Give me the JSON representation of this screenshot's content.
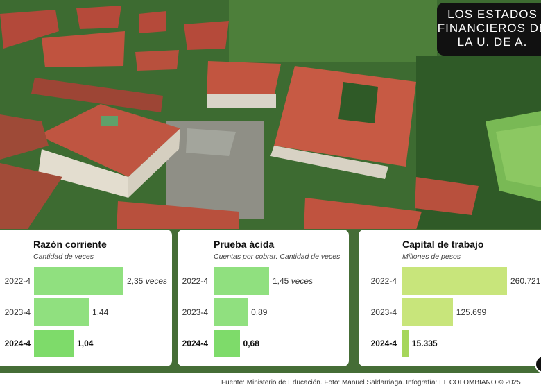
{
  "title_lines": [
    "LOS ESTADOS",
    "FINANCIEROS DE",
    "LA U. DE A."
  ],
  "colors": {
    "bar_strong": "#7edb6a",
    "bar_light": "#90e07f",
    "bar_lime": "#c8e57b",
    "bar_lime_dark": "#a6d65a"
  },
  "chart_data": [
    {
      "type": "bar",
      "title": "Razón corriente",
      "subtitle": "Cantidad de veces",
      "categories": [
        "2022-4",
        "2023-4",
        "2024-4"
      ],
      "values": [
        2.35,
        1.44,
        1.04
      ],
      "value_labels": [
        "2,35",
        "1,44",
        "1,04"
      ],
      "unit_label": "veces"
    },
    {
      "type": "bar",
      "title": "Prueba ácida",
      "subtitle": "Cuentas por cobrar. Cantidad de veces",
      "categories": [
        "2022-4",
        "2023-4",
        "2024-4"
      ],
      "values": [
        1.45,
        0.89,
        0.68
      ],
      "value_labels": [
        "1,45",
        "0,89",
        "0,68"
      ],
      "unit_label": "veces"
    },
    {
      "type": "bar",
      "title": "Capital de trabajo",
      "subtitle": "Millones de pesos",
      "categories": [
        "2022-4",
        "2023-4",
        "2024-4"
      ],
      "values": [
        260721,
        125699,
        15335
      ],
      "value_labels": [
        "260.721",
        "125.699",
        "15.335"
      ],
      "unit_label": ""
    }
  ],
  "footer": "Fuente: Ministerio de Educación. Foto: Manuel Saldarriaga. Infografía: EL COLOMBIANO © 2025"
}
